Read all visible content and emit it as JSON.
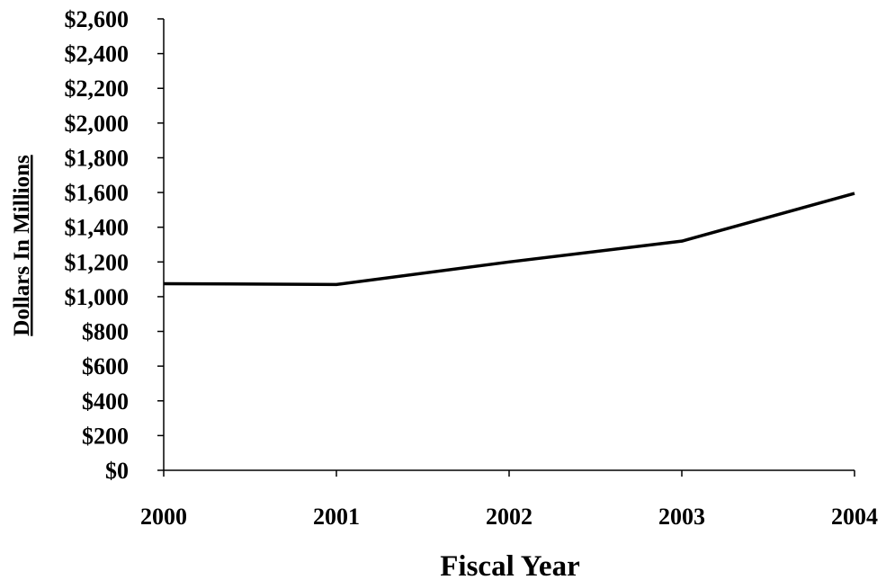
{
  "chart_data": {
    "type": "line",
    "title": "",
    "xlabel": "Fiscal Year",
    "ylabel": "Dollars In Millions",
    "categories": [
      "2000",
      "2001",
      "2002",
      "2003",
      "2004"
    ],
    "series": [
      {
        "values": [
          1075,
          1070,
          1200,
          1320,
          1595
        ]
      }
    ],
    "ylim": [
      0,
      2600
    ],
    "yticks": [
      0,
      200,
      400,
      600,
      800,
      1000,
      1200,
      1400,
      1600,
      1800,
      2000,
      2200,
      2400,
      2600
    ],
    "ytick_labels": [
      "$0",
      "$200",
      "$400",
      "$600",
      "$800",
      "$1,000",
      "$1,200",
      "$1,400",
      "$1,600",
      "$1,800",
      "$2,000",
      "$2,200",
      "$2,400",
      "$2,600"
    ],
    "grid": false,
    "legend": "none",
    "line_color": "#000000"
  }
}
